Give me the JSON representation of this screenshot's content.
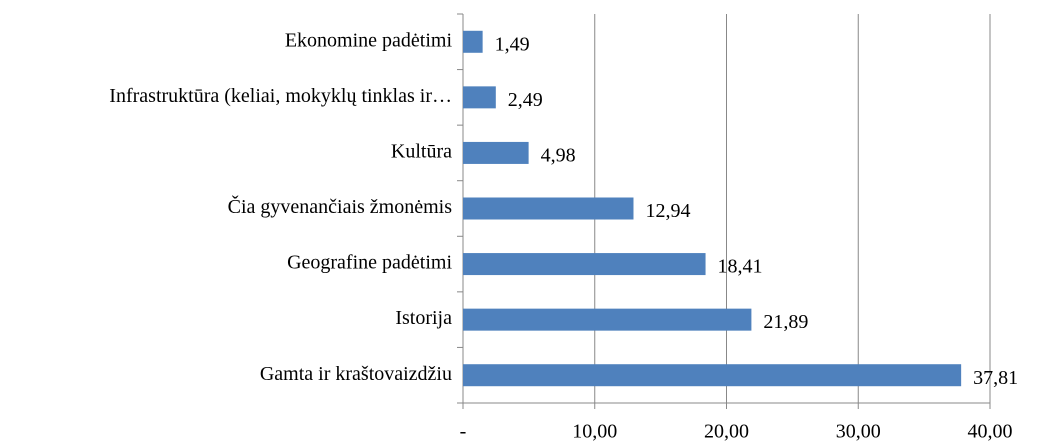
{
  "chart_data": {
    "type": "bar",
    "orientation": "horizontal",
    "categories": [
      "Ekonomine padėtimi",
      "Infrastruktūra (keliai, mokyklų tinklas ir…",
      "Kultūra",
      "Čia gyvenančiais žmonėmis",
      "Geografine padėtimi",
      "Istorija",
      "Gamta ir kraštovaizdžiu"
    ],
    "values": [
      1.49,
      2.49,
      4.98,
      12.94,
      18.41,
      21.89,
      37.81
    ],
    "value_labels": [
      "1,49",
      "2,49",
      "4,98",
      "12,94",
      "18,41",
      "21,89",
      "37,81"
    ],
    "color": "#4f81bd",
    "xlim": [
      0,
      40
    ],
    "xticks": [
      {
        "value": 0,
        "label": "-"
      },
      {
        "value": 10,
        "label": "10,00"
      },
      {
        "value": 20,
        "label": "20,00"
      },
      {
        "value": 30,
        "label": "30,00"
      },
      {
        "value": 40,
        "label": "40,00"
      }
    ],
    "grid": true
  }
}
